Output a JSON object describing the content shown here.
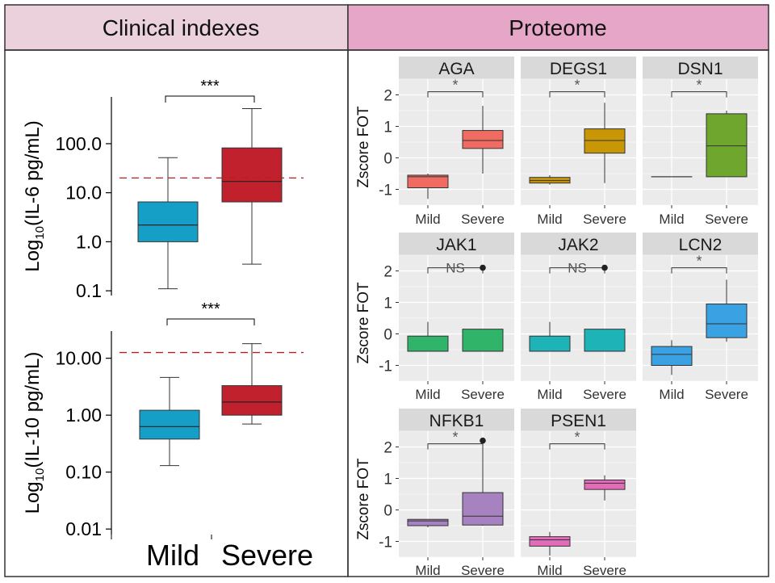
{
  "header": {
    "left_title": "Clinical indexes",
    "right_title": "Proteome",
    "left_color": "#ead1dc",
    "right_color": "#e6a6c8"
  },
  "clinical": {
    "categories": [
      "Mild",
      "Severe"
    ],
    "colors": {
      "Mild": "#159fc7",
      "Severe": "#c1202d",
      "threshold": "#b22222"
    },
    "panels": [
      {
        "id": "il6",
        "ylabel_base": "Log",
        "ylabel_sub": "10",
        "ylabel_rest": "(IL-6 pg/mL)",
        "scale": "log10",
        "ylim": [
          0.08,
          900
        ],
        "ticks": [
          {
            "value": 0.1,
            "label": "0.1"
          },
          {
            "value": 1,
            "label": "1.0"
          },
          {
            "value": 10,
            "label": "10.0"
          },
          {
            "value": 100,
            "label": "100.0"
          }
        ],
        "threshold": 20,
        "significance": "***",
        "boxes": [
          {
            "group": "Mild",
            "whisker_low": 0.11,
            "q1": 1.0,
            "median": 2.2,
            "q3": 6.5,
            "whisker_high": 52
          },
          {
            "group": "Severe",
            "whisker_low": 0.35,
            "q1": 6.5,
            "median": 17,
            "q3": 82,
            "whisker_high": 520
          }
        ]
      },
      {
        "id": "il10",
        "ylabel_base": "Log",
        "ylabel_sub": "10",
        "ylabel_rest": "(IL-10 pg/mL)",
        "scale": "log10",
        "ylim": [
          0.008,
          30
        ],
        "ticks": [
          {
            "value": 0.01,
            "label": "0.01"
          },
          {
            "value": 0.1,
            "label": "0.10"
          },
          {
            "value": 1,
            "label": "1.00"
          },
          {
            "value": 10,
            "label": "10.00"
          }
        ],
        "threshold": 12.6,
        "significance": "***",
        "boxes": [
          {
            "group": "Mild",
            "whisker_low": 0.13,
            "q1": 0.38,
            "median": 0.63,
            "q3": 1.22,
            "whisker_high": 4.6
          },
          {
            "group": "Severe",
            "whisker_low": 0.7,
            "q1": 1.0,
            "median": 1.7,
            "q3": 3.3,
            "whisker_high": 18
          }
        ]
      }
    ]
  },
  "chart_data": {
    "type": "box",
    "title": "Proteome",
    "ylabel": "Zscore FOT",
    "categories": [
      "Mild",
      "Severe"
    ],
    "ylim": [
      -1.5,
      2.5
    ],
    "yticks": [
      2,
      1,
      0,
      -1
    ],
    "ytick_labels": [
      "2",
      "1",
      "0",
      "-1"
    ],
    "panels": [
      {
        "protein": "AGA",
        "color": "#f06b61",
        "significance": "*",
        "boxes": [
          {
            "group": "Mild",
            "whisker_low": -1.3,
            "q1": -0.95,
            "median": -0.6,
            "q3": -0.55,
            "whisker_high": -0.5
          },
          {
            "group": "Severe",
            "whisker_low": -0.5,
            "q1": 0.3,
            "median": 0.55,
            "q3": 0.87,
            "whisker_high": 1.65
          }
        ]
      },
      {
        "protein": "DEGS1",
        "color": "#c99706",
        "significance": "*",
        "boxes": [
          {
            "group": "Mild",
            "whisker_low": -0.85,
            "q1": -0.8,
            "median": -0.72,
            "q3": -0.62,
            "whisker_high": -0.55
          },
          {
            "group": "Severe",
            "whisker_low": -0.8,
            "q1": 0.15,
            "median": 0.55,
            "q3": 0.92,
            "whisker_high": 1.75
          }
        ]
      },
      {
        "protein": "DSN1",
        "color": "#6ea62e",
        "significance": "*",
        "boxes": [
          {
            "group": "Mild",
            "whisker_low": -0.6,
            "q1": -0.6,
            "median": -0.6,
            "q3": -0.6,
            "whisker_high": -0.6
          },
          {
            "group": "Severe",
            "whisker_low": -0.6,
            "q1": -0.6,
            "median": 0.38,
            "q3": 1.4,
            "whisker_high": 1.5
          }
        ]
      },
      {
        "protein": "JAK1",
        "color": "#2fb46a",
        "significance": "NS",
        "outlier": {
          "group": "Severe",
          "value": 2.1
        },
        "boxes": [
          {
            "group": "Mild",
            "whisker_low": -0.55,
            "q1": -0.55,
            "median": -0.55,
            "q3": -0.07,
            "whisker_high": 0.38
          },
          {
            "group": "Severe",
            "whisker_low": -0.55,
            "q1": -0.55,
            "median": -0.55,
            "q3": 0.15,
            "whisker_high": 0.15
          }
        ]
      },
      {
        "protein": "JAK2",
        "color": "#1eb3b6",
        "significance": "NS",
        "outlier": {
          "group": "Severe",
          "value": 2.1
        },
        "boxes": [
          {
            "group": "Mild",
            "whisker_low": -0.55,
            "q1": -0.55,
            "median": -0.55,
            "q3": -0.07,
            "whisker_high": 0.38
          },
          {
            "group": "Severe",
            "whisker_low": -0.55,
            "q1": -0.55,
            "median": -0.55,
            "q3": 0.15,
            "whisker_high": 0.15
          }
        ]
      },
      {
        "protein": "LCN2",
        "color": "#3aa2e2",
        "significance": "*",
        "boxes": [
          {
            "group": "Mild",
            "whisker_low": -1.3,
            "q1": -1.0,
            "median": -0.65,
            "q3": -0.4,
            "whisker_high": -0.2
          },
          {
            "group": "Severe",
            "whisker_low": -0.25,
            "q1": -0.12,
            "median": 0.32,
            "q3": 0.95,
            "whisker_high": 1.72
          }
        ]
      },
      {
        "protein": "NFKB1",
        "color": "#a682c0",
        "significance": "*",
        "outlier": {
          "group": "Severe",
          "value": 2.2
        },
        "boxes": [
          {
            "group": "Mild",
            "whisker_low": -0.55,
            "q1": -0.5,
            "median": -0.35,
            "q3": -0.3,
            "whisker_high": -0.3
          },
          {
            "group": "Severe",
            "whisker_low": -0.5,
            "q1": -0.48,
            "median": -0.2,
            "q3": 0.55,
            "whisker_high": 2.0
          }
        ]
      },
      {
        "protein": "PSEN1",
        "color": "#e46bba",
        "significance": "*",
        "boxes": [
          {
            "group": "Mild",
            "whisker_low": -1.45,
            "q1": -1.15,
            "median": -0.95,
            "q3": -0.85,
            "whisker_high": -0.7
          },
          {
            "group": "Severe",
            "whisker_low": 0.3,
            "q1": 0.65,
            "median": 0.85,
            "q3": 0.95,
            "whisker_high": 1.1
          }
        ]
      }
    ]
  }
}
